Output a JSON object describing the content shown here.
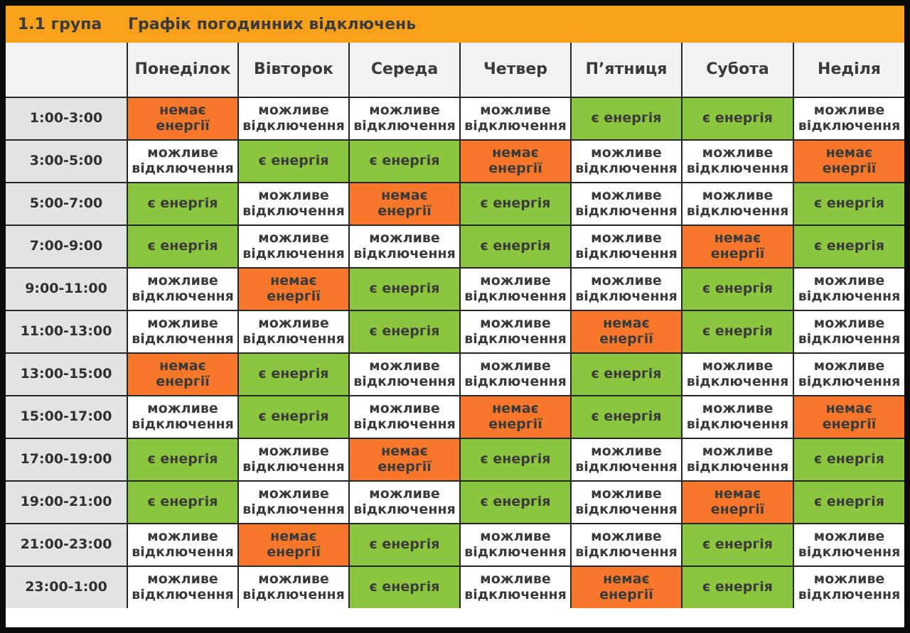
{
  "header": {
    "group": "1.1 група",
    "title": "Графік погодинних відключень"
  },
  "days": [
    "Понеділок",
    "Вівторок",
    "Середа",
    "Четвер",
    "П’ятниця",
    "Субота",
    "Неділя"
  ],
  "status_labels": {
    "on": "є енергія",
    "off_line1": "немає",
    "off_line2": "енергії",
    "maybe_line1": "можливе",
    "maybe_line2": "відключення"
  },
  "colors": {
    "on": "#8cc63f",
    "off": "#f7782b",
    "maybe": "#ffffff",
    "header_bar": "#f9a11b"
  },
  "rows": [
    {
      "time": "1:00-3:00",
      "cells": [
        "off",
        "maybe",
        "maybe",
        "maybe",
        "on",
        "on",
        "maybe"
      ]
    },
    {
      "time": "3:00-5:00",
      "cells": [
        "maybe",
        "on",
        "on",
        "off",
        "maybe",
        "maybe",
        "off"
      ]
    },
    {
      "time": "5:00-7:00",
      "cells": [
        "on",
        "maybe",
        "off",
        "on",
        "maybe",
        "maybe",
        "on"
      ]
    },
    {
      "time": "7:00-9:00",
      "cells": [
        "on",
        "maybe",
        "maybe",
        "on",
        "maybe",
        "off",
        "on"
      ]
    },
    {
      "time": "9:00-11:00",
      "cells": [
        "maybe",
        "off",
        "on",
        "maybe",
        "maybe",
        "on",
        "maybe"
      ]
    },
    {
      "time": "11:00-13:00",
      "cells": [
        "maybe",
        "maybe",
        "on",
        "maybe",
        "off",
        "on",
        "maybe"
      ]
    },
    {
      "time": "13:00-15:00",
      "cells": [
        "off",
        "on",
        "maybe",
        "maybe",
        "on",
        "maybe",
        "maybe"
      ]
    },
    {
      "time": "15:00-17:00",
      "cells": [
        "maybe",
        "on",
        "maybe",
        "off",
        "on",
        "maybe",
        "off"
      ]
    },
    {
      "time": "17:00-19:00",
      "cells": [
        "on",
        "maybe",
        "off",
        "on",
        "maybe",
        "maybe",
        "on"
      ]
    },
    {
      "time": "19:00-21:00",
      "cells": [
        "on",
        "maybe",
        "maybe",
        "on",
        "maybe",
        "off",
        "on"
      ]
    },
    {
      "time": "21:00-23:00",
      "cells": [
        "maybe",
        "off",
        "on",
        "maybe",
        "maybe",
        "on",
        "maybe"
      ]
    },
    {
      "time": "23:00-1:00",
      "cells": [
        "maybe",
        "maybe",
        "on",
        "maybe",
        "off",
        "on",
        "maybe"
      ]
    }
  ]
}
